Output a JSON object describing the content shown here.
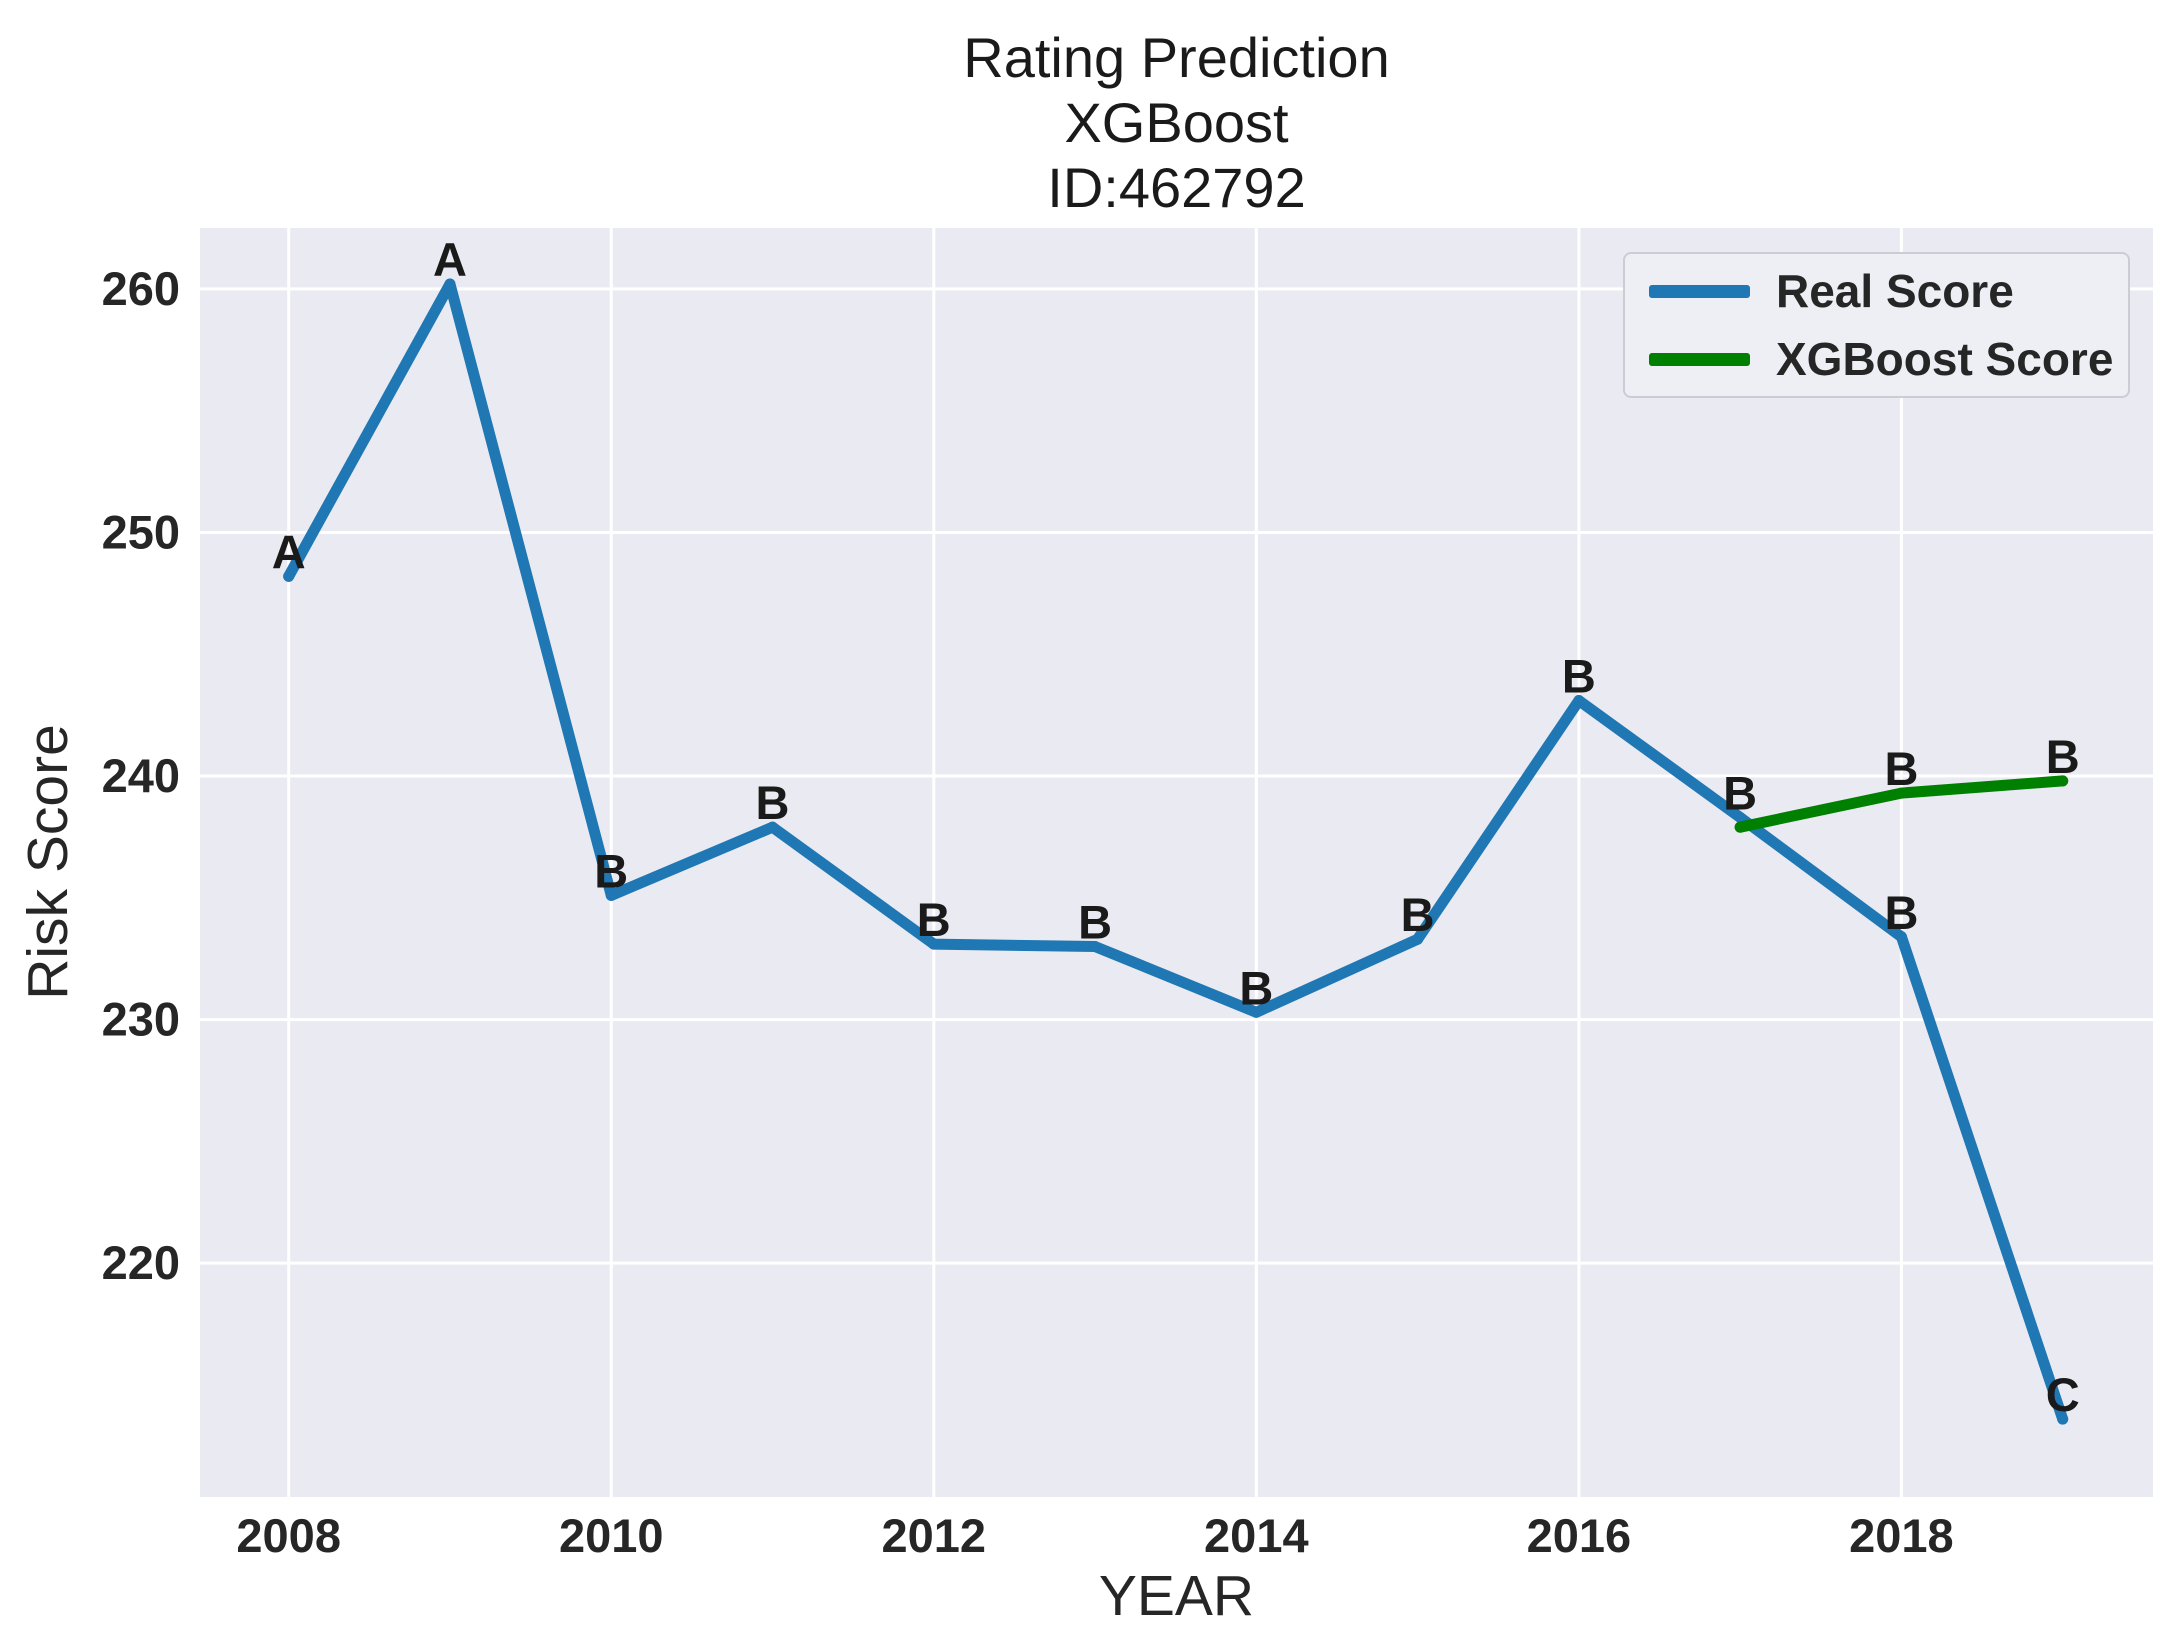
{
  "title": {
    "lines": [
      "Rating Prediction",
      "XGBoost",
      "ID:462792"
    ]
  },
  "axes": {
    "xlabel": "YEAR",
    "ylabel": "Risk Score"
  },
  "legend": {
    "items": [
      {
        "label": "Real Score",
        "color": "#1f77b4"
      },
      {
        "label": "XGBoost Score",
        "color": "#008000"
      }
    ]
  },
  "colors": {
    "figure_bg": "#ffffff",
    "plot_bg": "#eaeaf2",
    "grid": "#ffffff",
    "tick_text": "#262626",
    "point_label_text": "#1a1a1a"
  },
  "chart_data": {
    "type": "line",
    "title": "Rating Prediction XGBoost ID:462792",
    "xlabel": "YEAR",
    "ylabel": "Risk Score",
    "xlim": [
      2007.45,
      2019.56
    ],
    "ylim": [
      210.4,
      262.5
    ],
    "x_ticks": [
      2008,
      2010,
      2012,
      2014,
      2016,
      2018
    ],
    "y_ticks": [
      220,
      230,
      240,
      250,
      260
    ],
    "grid": true,
    "legend_position": "upper right",
    "series": [
      {
        "name": "Real Score",
        "color": "#1f77b4",
        "x": [
          2008,
          2009,
          2010,
          2011,
          2012,
          2013,
          2014,
          2015,
          2016,
          2017,
          2018,
          2019
        ],
        "values": [
          248.2,
          260.2,
          235.1,
          237.9,
          233.1,
          233.0,
          230.3,
          233.3,
          243.1,
          238.3,
          233.4,
          213.6
        ],
        "point_labels": [
          "A",
          "A",
          "B",
          "B",
          "B",
          "B",
          "B",
          "B",
          "B",
          "B",
          "B",
          "C"
        ]
      },
      {
        "name": "XGBoost Score",
        "color": "#008000",
        "x": [
          2017,
          2018,
          2019
        ],
        "values": [
          237.9,
          239.3,
          239.8
        ],
        "point_labels": [
          "",
          "B",
          "B"
        ]
      }
    ]
  }
}
